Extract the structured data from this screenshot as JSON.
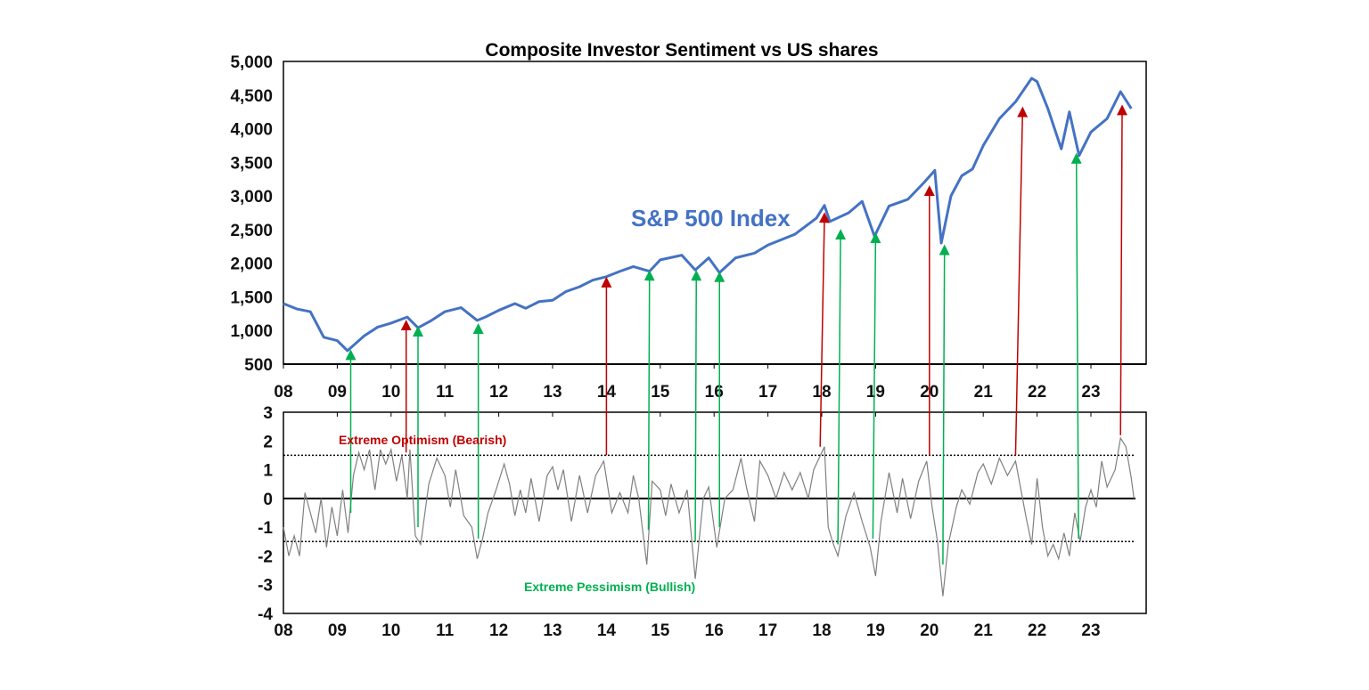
{
  "chart_data": [
    {
      "type": "line",
      "title": "Composite Investor Sentiment vs US shares",
      "series_label": "S&P 500 Index",
      "xlabel": "",
      "ylabel": "",
      "xlim": [
        2008,
        2024
      ],
      "ylim": [
        500,
        5000
      ],
      "yticks": [
        500,
        1000,
        1500,
        2000,
        2500,
        3000,
        3500,
        4000,
        4500,
        5000
      ],
      "ytick_labels": [
        "500",
        "1,000",
        "1,500",
        "2,000",
        "2,500",
        "3,000",
        "3,500",
        "4,000",
        "4,500",
        "5,000"
      ],
      "xticks": [
        2008,
        2009,
        2010,
        2011,
        2012,
        2013,
        2014,
        2015,
        2016,
        2017,
        2018,
        2019,
        2020,
        2021,
        2022,
        2023
      ],
      "xtick_labels": [
        "08",
        "09",
        "10",
        "11",
        "12",
        "13",
        "14",
        "15",
        "16",
        "17",
        "18",
        "19",
        "20",
        "21",
        "22",
        "23"
      ],
      "color": "#4472C4",
      "x": [
        2008.0,
        2008.25,
        2008.5,
        2008.75,
        2009.0,
        2009.19,
        2009.5,
        2009.75,
        2010.0,
        2010.3,
        2010.5,
        2010.75,
        2011.0,
        2011.3,
        2011.6,
        2011.75,
        2012.0,
        2012.3,
        2012.5,
        2012.75,
        2013.0,
        2013.25,
        2013.5,
        2013.75,
        2014.0,
        2014.25,
        2014.5,
        2014.8,
        2015.0,
        2015.4,
        2015.65,
        2015.9,
        2016.1,
        2016.4,
        2016.75,
        2017.0,
        2017.5,
        2017.9,
        2018.05,
        2018.15,
        2018.5,
        2018.75,
        2018.98,
        2019.25,
        2019.6,
        2019.9,
        2020.1,
        2020.22,
        2020.4,
        2020.6,
        2020.8,
        2021.0,
        2021.3,
        2021.6,
        2021.9,
        2022.0,
        2022.2,
        2022.45,
        2022.6,
        2022.78,
        2023.0,
        2023.3,
        2023.55,
        2023.75
      ],
      "y": [
        1400,
        1320,
        1280,
        900,
        850,
        700,
        920,
        1050,
        1110,
        1200,
        1040,
        1150,
        1280,
        1340,
        1150,
        1200,
        1300,
        1400,
        1330,
        1430,
        1450,
        1580,
        1650,
        1750,
        1800,
        1880,
        1950,
        1880,
        2050,
        2120,
        1900,
        2080,
        1860,
        2080,
        2150,
        2270,
        2430,
        2670,
        2860,
        2620,
        2750,
        2920,
        2400,
        2850,
        2950,
        3200,
        3380,
        2300,
        3000,
        3300,
        3400,
        3750,
        4150,
        4400,
        4750,
        4700,
        4300,
        3700,
        4250,
        3600,
        3950,
        4150,
        4550,
        4300
      ]
    },
    {
      "type": "line",
      "ylim": [
        -4,
        3
      ],
      "yticks": [
        -4,
        -3,
        -2,
        -1,
        0,
        1,
        2,
        3
      ],
      "ytick_labels": [
        "-4",
        "-3",
        "-2",
        "-1",
        "0",
        "1",
        "2",
        "3"
      ],
      "xticks": [
        2008,
        2009,
        2010,
        2011,
        2012,
        2013,
        2014,
        2015,
        2016,
        2017,
        2018,
        2019,
        2020,
        2021,
        2022,
        2023
      ],
      "xtick_labels": [
        "08",
        "09",
        "10",
        "11",
        "12",
        "13",
        "14",
        "15",
        "16",
        "17",
        "18",
        "19",
        "20",
        "21",
        "22",
        "23"
      ],
      "thresholds": [
        1.5,
        -1.5
      ],
      "color": "#808080",
      "annotations": {
        "optimism": {
          "text": "Extreme Optimism (Bearish)",
          "color": "#C00000"
        },
        "pessimism": {
          "text": "Extreme Pessimism (Bullish)",
          "color": "#00B050"
        }
      },
      "x": [
        2008.0,
        2008.1,
        2008.2,
        2008.3,
        2008.4,
        2008.5,
        2008.6,
        2008.7,
        2008.8,
        2008.9,
        2009.0,
        2009.1,
        2009.2,
        2009.3,
        2009.4,
        2009.5,
        2009.6,
        2009.7,
        2009.8,
        2009.9,
        2010.0,
        2010.1,
        2010.2,
        2010.3,
        2010.35,
        2010.45,
        2010.55,
        2010.7,
        2010.85,
        2011.0,
        2011.1,
        2011.2,
        2011.35,
        2011.5,
        2011.6,
        2011.7,
        2011.8,
        2011.95,
        2012.1,
        2012.2,
        2012.3,
        2012.4,
        2012.5,
        2012.6,
        2012.75,
        2012.9,
        2013.0,
        2013.1,
        2013.2,
        2013.35,
        2013.5,
        2013.65,
        2013.8,
        2013.95,
        2014.1,
        2014.25,
        2014.4,
        2014.5,
        2014.6,
        2014.75,
        2014.85,
        2015.0,
        2015.1,
        2015.2,
        2015.35,
        2015.5,
        2015.65,
        2015.8,
        2015.9,
        2016.05,
        2016.2,
        2016.35,
        2016.5,
        2016.6,
        2016.75,
        2016.85,
        2017.0,
        2017.15,
        2017.3,
        2017.45,
        2017.6,
        2017.75,
        2017.85,
        2018.05,
        2018.12,
        2018.2,
        2018.3,
        2018.45,
        2018.6,
        2018.75,
        2018.9,
        2019.0,
        2019.1,
        2019.25,
        2019.4,
        2019.5,
        2019.65,
        2019.8,
        2019.95,
        2020.05,
        2020.15,
        2020.25,
        2020.35,
        2020.5,
        2020.6,
        2020.75,
        2020.9,
        2021.0,
        2021.15,
        2021.3,
        2021.45,
        2021.6,
        2021.7,
        2021.8,
        2021.9,
        2022.0,
        2022.1,
        2022.2,
        2022.3,
        2022.4,
        2022.5,
        2022.6,
        2022.7,
        2022.8,
        2022.9,
        2023.0,
        2023.1,
        2023.2,
        2023.3,
        2023.45,
        2023.55,
        2023.65,
        2023.75,
        2023.8
      ],
      "y": [
        -1,
        -2,
        -1.3,
        -2,
        0.2,
        -0.5,
        -1.2,
        0,
        -1.7,
        -0.3,
        -1.3,
        0.3,
        -1.2,
        0.8,
        1.6,
        1.0,
        1.7,
        0.3,
        1.7,
        1.2,
        1.7,
        0.6,
        1.5,
        0.0,
        1.7,
        -1.3,
        -1.6,
        0.5,
        1.4,
        0.8,
        -0.3,
        1.0,
        -0.6,
        -1.0,
        -2.1,
        -1.4,
        -0.5,
        0.3,
        1.2,
        0.5,
        -0.6,
        0.3,
        -0.5,
        0.7,
        -0.8,
        0.8,
        1.1,
        0.3,
        1.0,
        -0.8,
        0.8,
        -0.5,
        0.8,
        1.3,
        -0.5,
        0.2,
        -0.5,
        0.8,
        0,
        -2.3,
        0.6,
        0.3,
        -0.6,
        0.5,
        -0.5,
        0.3,
        -2.8,
        0.0,
        0.4,
        -1.7,
        0.0,
        0.3,
        1.4,
        0.4,
        -0.8,
        1.3,
        0.8,
        0,
        0.9,
        0.3,
        0.9,
        0.0,
        1.0,
        1.8,
        -1.0,
        -1.5,
        -2.0,
        -0.6,
        0.2,
        -0.8,
        -1.7,
        -2.7,
        -0.8,
        0.9,
        -0.5,
        0.7,
        -0.7,
        0.6,
        1.3,
        -0.3,
        -1.5,
        -3.4,
        -1.6,
        -0.3,
        0.3,
        -0.2,
        0.9,
        1.2,
        0.5,
        1.4,
        0.8,
        1.3,
        0.3,
        -0.7,
        -1.6,
        0.7,
        -1.0,
        -2.0,
        -1.6,
        -2.1,
        -1.2,
        -2.0,
        -0.5,
        -1.5,
        -0.3,
        0.3,
        -0.3,
        1.3,
        0.4,
        1.0,
        2.1,
        1.8,
        0.7,
        0.0
      ]
    }
  ],
  "arrows": {
    "optimism_color": "#C00000",
    "pessimism_color": "#00B050",
    "optimism": [
      {
        "x_sentiment": 2010.28,
        "sentiment": 1.6,
        "x_index": 2010.28,
        "index": 1080
      },
      {
        "x_sentiment": 2014.0,
        "sentiment": 1.5,
        "x_index": 2014.0,
        "index": 1720
      },
      {
        "x_sentiment": 2017.97,
        "sentiment": 1.8,
        "x_index": 2018.05,
        "index": 2680
      },
      {
        "x_sentiment": 2020.0,
        "sentiment": 1.5,
        "x_index": 2020.0,
        "index": 3080
      },
      {
        "x_sentiment": 2021.6,
        "sentiment": 1.5,
        "x_index": 2021.73,
        "index": 4250
      },
      {
        "x_sentiment": 2023.55,
        "sentiment": 2.2,
        "x_index": 2023.58,
        "index": 4280
      }
    ],
    "pessimism": [
      {
        "x_sentiment": 2009.25,
        "sentiment": -0.5,
        "x_index": 2009.25,
        "index": 640
      },
      {
        "x_sentiment": 2010.5,
        "sentiment": -1.0,
        "x_index": 2010.5,
        "index": 990
      },
      {
        "x_sentiment": 2011.62,
        "sentiment": -1.4,
        "x_index": 2011.62,
        "index": 1030
      },
      {
        "x_sentiment": 2014.78,
        "sentiment": -1.1,
        "x_index": 2014.8,
        "index": 1820
      },
      {
        "x_sentiment": 2015.65,
        "sentiment": -1.5,
        "x_index": 2015.67,
        "index": 1820
      },
      {
        "x_sentiment": 2016.1,
        "sentiment": -1.0,
        "x_index": 2016.1,
        "index": 1800
      },
      {
        "x_sentiment": 2018.3,
        "sentiment": -1.6,
        "x_index": 2018.35,
        "index": 2430
      },
      {
        "x_sentiment": 2018.95,
        "sentiment": -1.4,
        "x_index": 2019.0,
        "index": 2380
      },
      {
        "x_sentiment": 2020.25,
        "sentiment": -2.3,
        "x_index": 2020.28,
        "index": 2200
      },
      {
        "x_sentiment": 2022.77,
        "sentiment": -1.4,
        "x_index": 2022.73,
        "index": 3560
      }
    ]
  }
}
